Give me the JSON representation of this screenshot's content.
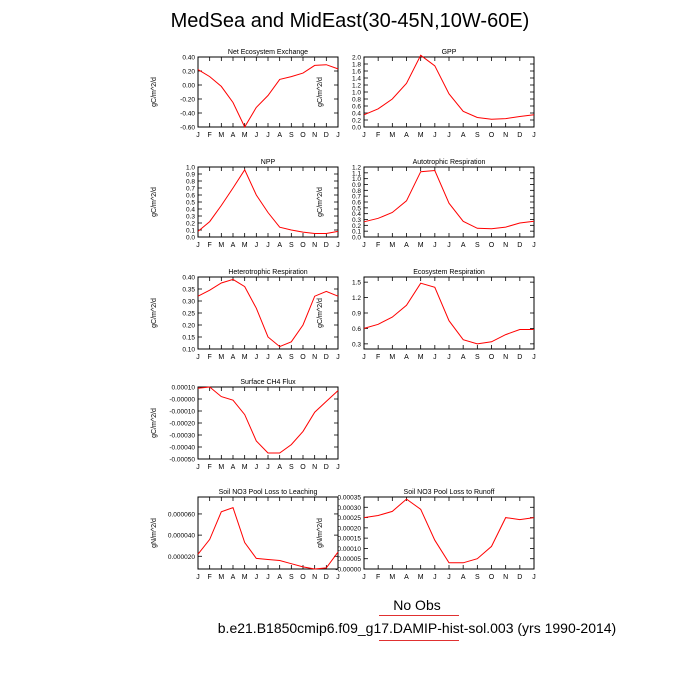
{
  "title": "MedSea and MidEast(30-45N,10W-60E)",
  "legend": {
    "obs": "No Obs",
    "case": "b.e21.B1850cmip6.f09_g17.DAMIP-hist-sol.003 (yrs 1990-2014)"
  },
  "colors": {
    "line": "#ff0000",
    "axis": "#000000"
  },
  "months": [
    "J",
    "F",
    "M",
    "A",
    "M",
    "J",
    "J",
    "A",
    "S",
    "O",
    "N",
    "D",
    "J"
  ],
  "chart_data": [
    {
      "type": "line",
      "title": "Net Ecosystem Exchange",
      "ylabel": "gC/m^2/d",
      "ylim": [
        -0.6,
        0.4
      ],
      "yticks": [
        0.4,
        0.2,
        0.0,
        -0.2,
        -0.4,
        -0.6
      ],
      "decimals": 2,
      "values": [
        0.22,
        0.12,
        -0.02,
        -0.25,
        -0.6,
        -0.32,
        -0.15,
        0.08,
        0.12,
        0.17,
        0.28,
        0.29,
        0.23
      ]
    },
    {
      "type": "line",
      "title": "GPP",
      "ylabel": "gC/m^2/d",
      "ylim": [
        0,
        2.0
      ],
      "yticks": [
        2.0,
        1.8,
        1.6,
        1.4,
        1.2,
        1.0,
        0.8,
        0.6,
        0.4,
        0.2,
        0.0
      ],
      "decimals": 1,
      "values": [
        0.35,
        0.52,
        0.8,
        1.25,
        2.05,
        1.75,
        0.95,
        0.45,
        0.27,
        0.22,
        0.24,
        0.3,
        0.35
      ]
    },
    {
      "type": "line",
      "title": "NPP",
      "ylabel": "gC/m^2/d",
      "ylim": [
        0,
        1.0
      ],
      "yticks": [
        1.0,
        0.9,
        0.8,
        0.7,
        0.6,
        0.5,
        0.4,
        0.3,
        0.2,
        0.1,
        0.0
      ],
      "decimals": 1,
      "values": [
        0.08,
        0.22,
        0.45,
        0.7,
        0.96,
        0.6,
        0.35,
        0.14,
        0.1,
        0.07,
        0.05,
        0.05,
        0.08
      ]
    },
    {
      "type": "line",
      "title": "Autotrophic Respiration",
      "ylabel": "gC/m^2/d",
      "ylim": [
        0,
        1.2
      ],
      "yticks": [
        1.2,
        1.1,
        1.0,
        0.9,
        0.8,
        0.7,
        0.6,
        0.5,
        0.4,
        0.3,
        0.2,
        0.1,
        0.0
      ],
      "decimals": 1,
      "values": [
        0.26,
        0.32,
        0.42,
        0.62,
        1.12,
        1.14,
        0.58,
        0.27,
        0.15,
        0.14,
        0.17,
        0.24,
        0.27
      ]
    },
    {
      "type": "line",
      "title": "Heterotrophic Respiration",
      "ylabel": "gC/m^2/d",
      "ylim": [
        0.1,
        0.4
      ],
      "yticks": [
        0.4,
        0.35,
        0.3,
        0.25,
        0.2,
        0.15,
        0.1
      ],
      "decimals": 2,
      "values": [
        0.32,
        0.345,
        0.375,
        0.39,
        0.36,
        0.27,
        0.15,
        0.11,
        0.13,
        0.2,
        0.32,
        0.34,
        0.32
      ]
    },
    {
      "type": "line",
      "title": "Ecosystem Respiration",
      "ylabel": "gC/m^2/d",
      "ylim": [
        0.2,
        1.6
      ],
      "yticks": [
        1.5,
        1.2,
        0.9,
        0.6,
        0.3
      ],
      "decimals": 1,
      "values": [
        0.6,
        0.68,
        0.82,
        1.05,
        1.48,
        1.4,
        0.75,
        0.38,
        0.3,
        0.34,
        0.48,
        0.58,
        0.58
      ]
    },
    {
      "type": "line",
      "title": "Surface CH4 Flux",
      "ylabel": "gC/m^2/d",
      "ylim": [
        -0.0005,
        0.0001
      ],
      "yticks": [
        0.0001,
        0.0,
        -0.0001,
        -0.0002,
        -0.0003,
        -0.0004,
        -0.0005
      ],
      "decimals": 5,
      "values": [
        9e-05,
        0.0001,
        2e-05,
        -1e-05,
        -0.00013,
        -0.00035,
        -0.00045,
        -0.00045,
        -0.00038,
        -0.00027,
        -0.00011,
        -2e-05,
        7e-05
      ]
    },
    {
      "type": "line",
      "title": "Soil NO3 Pool Loss to Leaching",
      "ylabel": "gN/m^2/d",
      "ylim": [
        8e-06,
        7.6e-05
      ],
      "yticks": [
        6e-05,
        4e-05,
        2e-05
      ],
      "decimals": 6,
      "values": [
        2.2e-05,
        3.6e-05,
        6.2e-05,
        6.6e-05,
        3.3e-05,
        1.8e-05,
        1.7e-05,
        1.6e-05,
        1.3e-05,
        1e-05,
        8e-06,
        9e-06,
        2.4e-05
      ]
    },
    {
      "type": "line",
      "title": "Soil NO3 Pool Loss to Runoff",
      "ylabel": "gN/m^2/d",
      "ylim": [
        0,
        0.00035
      ],
      "yticks": [
        0.00035,
        0.0003,
        0.00025,
        0.0002,
        0.00015,
        0.0001,
        5e-05,
        0.0
      ],
      "decimals": 5,
      "values": [
        0.00025,
        0.00026,
        0.00028,
        0.00034,
        0.00029,
        0.00014,
        3e-05,
        3e-05,
        5e-05,
        0.00011,
        0.00025,
        0.00024,
        0.00025
      ]
    }
  ]
}
